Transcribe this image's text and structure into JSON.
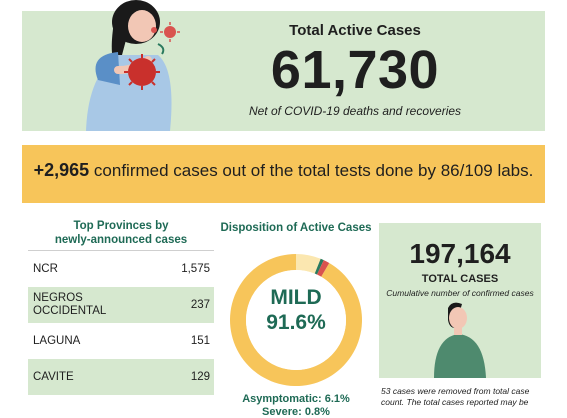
{
  "header": {
    "title": "Total Active Cases",
    "value": "61,730",
    "note": "Net of COVID-19 deaths and recoveries"
  },
  "confirmed": {
    "count": "+2,965",
    "text": "confirmed cases out of the total tests done by 86/109 labs."
  },
  "provinces": {
    "title_line1": "Top Provinces by",
    "title_line2": "newly-announced cases",
    "rows": [
      {
        "name": "NCR",
        "value": "1,575"
      },
      {
        "name": "NEGROS OCCIDENTAL",
        "value": "237"
      },
      {
        "name": "LAGUNA",
        "value": "151"
      },
      {
        "name": "CAVITE",
        "value": "129"
      }
    ]
  },
  "disposition": {
    "title": "Disposition of Active Cases",
    "center_label": "MILD",
    "center_value": "91.6%",
    "asymptomatic_text": "Asymptomatic: 6.1%",
    "severe_text": "Severe: 0.8%"
  },
  "chart_data": {
    "type": "pie",
    "title": "Disposition of Active Cases",
    "slices": [
      {
        "label": "Mild",
        "value": 91.6,
        "color": "#f7c55a"
      },
      {
        "label": "Asymptomatic",
        "value": 6.1,
        "color": "#fbe7b0"
      },
      {
        "label": "Severe",
        "value": 0.8,
        "color": "#2a7a5e"
      },
      {
        "label": "Critical",
        "value": 1.5,
        "color": "#d9534f"
      }
    ]
  },
  "total_cases": {
    "value": "197,164",
    "label": "TOTAL CASES",
    "note": "Cumulative number of confirmed cases",
    "removed_note_line1": "53 cases were removed from total case",
    "removed_note_line2": "count. The total cases reported may be"
  },
  "colors": {
    "green_bg": "#d6e8cf",
    "yellow": "#f7c55a",
    "teal": "#1e6a55"
  }
}
